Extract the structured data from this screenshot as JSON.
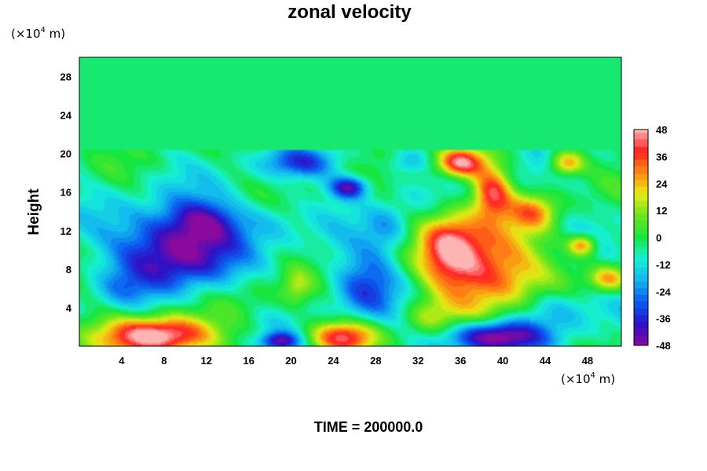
{
  "chart_data": {
    "type": "heatmap",
    "title": "zonal velocity",
    "ylabel": "Height",
    "xlabel": "",
    "y_unit": {
      "prefix": "(×10",
      "exp": "4",
      "suffix": " m)"
    },
    "x_unit": {
      "prefix": "(×10",
      "exp": "4",
      "suffix": " m)"
    },
    "x_ticks": [
      4,
      8,
      12,
      16,
      20,
      24,
      28,
      32,
      36,
      40,
      44,
      48
    ],
    "y_ticks": [
      4,
      8,
      12,
      16,
      20,
      24,
      28
    ],
    "xlim": [
      0,
      51.2
    ],
    "ylim": [
      0,
      30
    ],
    "colorbar": {
      "ticks": [
        48,
        36,
        24,
        12,
        0,
        -12,
        -24,
        -36,
        -48
      ],
      "range": [
        -48,
        48
      ],
      "palette": [
        "#8a0a9e",
        "#2a12c8",
        "#0a5af0",
        "#12b4f0",
        "#16f0d8",
        "#18e640",
        "#6ae61c",
        "#e6ec14",
        "#ff8a12",
        "#ff2020",
        "#ffb4b4"
      ]
    },
    "background_value": -5,
    "features": [
      {
        "x": 9,
        "y": 10,
        "rx": 6,
        "ry": 4.5,
        "value": -50
      },
      {
        "x": 12,
        "y": 13,
        "rx": 4,
        "ry": 2.5,
        "value": -28
      },
      {
        "x": 25.5,
        "y": 16.5,
        "rx": 2,
        "ry": 1.3,
        "value": -45
      },
      {
        "x": 21,
        "y": 19,
        "rx": 4,
        "ry": 1.6,
        "value": -28
      },
      {
        "x": 27,
        "y": 6.5,
        "rx": 3.5,
        "ry": 4,
        "value": -28
      },
      {
        "x": 29,
        "y": 12,
        "rx": 2.5,
        "ry": 3,
        "value": -22
      },
      {
        "x": 7.5,
        "y": 1,
        "rx": 5.5,
        "ry": 2.2,
        "value": 55
      },
      {
        "x": 25,
        "y": 1,
        "rx": 3.5,
        "ry": 1.8,
        "value": 38
      },
      {
        "x": 19,
        "y": 0.5,
        "rx": 2,
        "ry": 1,
        "value": -40
      },
      {
        "x": 38.5,
        "y": 8,
        "rx": 5.5,
        "ry": 5,
        "value": 42
      },
      {
        "x": 35,
        "y": 10.5,
        "rx": 3,
        "ry": 4,
        "value": 30
      },
      {
        "x": 36,
        "y": 19,
        "rx": 2.5,
        "ry": 1.6,
        "value": 42
      },
      {
        "x": 39,
        "y": 16,
        "rx": 2,
        "ry": 3,
        "value": 35
      },
      {
        "x": 43,
        "y": 14,
        "rx": 2.5,
        "ry": 2,
        "value": 22
      },
      {
        "x": 46,
        "y": 19,
        "rx": 1.8,
        "ry": 1.4,
        "value": 30
      },
      {
        "x": 47.5,
        "y": 10.5,
        "rx": 1.5,
        "ry": 1.2,
        "value": 32
      },
      {
        "x": 50,
        "y": 7,
        "rx": 2,
        "ry": 1.5,
        "value": 26
      },
      {
        "x": 39,
        "y": 1,
        "rx": 5,
        "ry": 1.8,
        "value": -52
      },
      {
        "x": 45,
        "y": 4,
        "rx": 4,
        "ry": 2.5,
        "value": -22
      },
      {
        "x": 4,
        "y": 6,
        "rx": 2.5,
        "ry": 2,
        "value": -12
      },
      {
        "x": 18,
        "y": 13,
        "rx": 3,
        "ry": 2.5,
        "value": -16
      },
      {
        "x": 31,
        "y": 19,
        "rx": 2,
        "ry": 1.2,
        "value": -18
      },
      {
        "x": 33,
        "y": 3,
        "rx": 2.5,
        "ry": 2,
        "value": 8
      },
      {
        "x": 20.5,
        "y": 6,
        "rx": 1.5,
        "ry": 2,
        "value": 10
      },
      {
        "x": 16,
        "y": 5,
        "rx": 3,
        "ry": 2.5,
        "value": 2
      }
    ],
    "upper_layer": {
      "y_from": 20.3,
      "y_to": 30,
      "value": -3
    },
    "grid": false
  },
  "footer": {
    "time_label": "TIME = 200000.0"
  }
}
